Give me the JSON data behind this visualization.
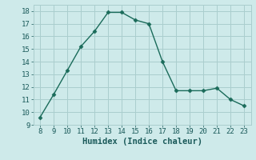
{
  "x": [
    8,
    9,
    10,
    11,
    12,
    13,
    14,
    15,
    16,
    17,
    18,
    19,
    20,
    21,
    22,
    23
  ],
  "y": [
    9.6,
    11.4,
    13.3,
    15.2,
    16.4,
    17.9,
    17.9,
    17.3,
    17.0,
    14.0,
    11.7,
    11.7,
    11.7,
    11.9,
    11.0,
    10.5
  ],
  "xlabel": "Humidex (Indice chaleur)",
  "xlim": [
    7.5,
    23.5
  ],
  "ylim": [
    9,
    18.5
  ],
  "xticks": [
    8,
    9,
    10,
    11,
    12,
    13,
    14,
    15,
    16,
    17,
    18,
    19,
    20,
    21,
    22,
    23
  ],
  "yticks": [
    9,
    10,
    11,
    12,
    13,
    14,
    15,
    16,
    17,
    18
  ],
  "line_color": "#1a6b5a",
  "marker_size": 2.5,
  "bg_color": "#ceeaea",
  "grid_color": "#aacece",
  "font_color": "#1a5a5a",
  "label_fontsize": 6.5,
  "xlabel_fontsize": 7.5
}
